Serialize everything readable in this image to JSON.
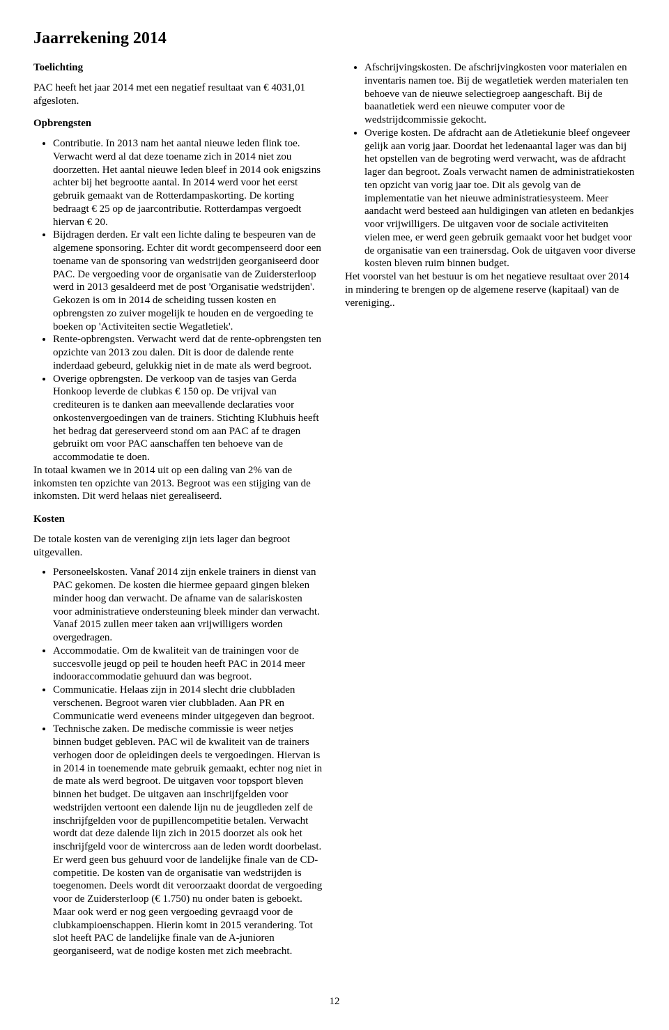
{
  "title": "Jaarrekening 2014",
  "sections": {
    "toelichting": {
      "heading": "Toelichting",
      "intro": "PAC heeft het jaar 2014 met een negatief resultaat van € 4031,01 afgesloten."
    },
    "opbrengsten": {
      "heading": "Opbrengsten",
      "items": [
        "Contributie. In 2013 nam het aantal nieuwe leden flink toe. Verwacht werd al dat deze toename zich in 2014 niet zou doorzetten. Het aantal nieuwe leden bleef in 2014 ook enigszins achter bij het begrootte aantal. In 2014 werd voor het eerst gebruik gemaakt van de Rotterdampaskorting. De korting bedraagt € 25 op de jaarcontributie. Rotterdampas vergoedt hiervan € 20.",
        "Bijdragen derden. Er valt een lichte daling te bespeuren van de algemene sponsoring. Echter dit wordt gecompenseerd door een toename van de sponsoring van wedstrijden georganiseerd door PAC. De vergoeding voor de organisatie van de Zuidersterloop werd in 2013 gesaldeerd met de post 'Organisatie wedstrijden'. Gekozen is om in 2014 de scheiding tussen kosten en opbrengsten zo zuiver mogelijk te houden en de vergoeding te boeken op 'Activiteiten sectie Wegatletiek'.",
        "Rente-opbrengsten. Verwacht werd dat de rente-opbrengsten ten opzichte van 2013 zou dalen. Dit is door de dalende rente inderdaad gebeurd, gelukkig niet in de mate als werd begroot.",
        "Overige opbrengsten. De verkoop van de tasjes van Gerda Honkoop leverde de clubkas € 150 op. De vrijval van crediteuren is te danken aan meevallende declaraties voor onkostenvergoedingen van de trainers. Stichting Klubhuis heeft het bedrag dat gereserveerd stond om aan PAC af te dragen gebruikt om voor PAC aanschaffen ten behoeve van de accommodatie te doen."
      ],
      "closing": "In totaal kwamen we in 2014 uit op een daling van 2% van de inkomsten ten opzichte van 2013. Begroot was een stijging van de inkomsten. Dit werd helaas niet gerealiseerd."
    },
    "kosten": {
      "heading": "Kosten",
      "intro": "De totale kosten van de vereniging zijn iets lager dan begroot uitgevallen.",
      "items": [
        "Personeelskosten. Vanaf 2014 zijn enkele trainers in dienst van PAC gekomen. De kosten die hiermee gepaard gingen bleken minder hoog dan verwacht. De afname van de salariskosten voor administratieve ondersteuning bleek minder dan verwacht. Vanaf 2015 zullen meer taken aan vrijwilligers worden overgedragen.",
        "Accommodatie. Om de kwaliteit van de trainingen voor de succesvolle jeugd op peil te houden heeft PAC in 2014 meer indooraccommodatie gehuurd dan was begroot.",
        "Communicatie. Helaas zijn in 2014 slecht drie clubbladen verschenen. Begroot waren vier clubbladen. Aan PR en Communicatie werd eveneens minder uitgegeven dan begroot.",
        "Technische zaken. De medische commissie is weer netjes binnen budget gebleven. PAC wil de kwaliteit van de trainers verhogen door de opleidingen deels te vergoedingen. Hiervan is in 2014 in toenemende mate gebruik gemaakt, echter nog niet in de mate als werd begroot. De uitgaven voor topsport bleven binnen het budget. De uitgaven aan inschrijfgelden voor wedstrijden vertoont een dalende lijn nu de jeugdleden zelf de inschrijfgelden voor de pupillencompetitie betalen. Verwacht wordt dat deze dalende lijn zich in 2015 doorzet als ook het inschrijfgeld voor de wintercross aan de leden wordt doorbelast. Er werd geen bus gehuurd voor de landelijke finale van de CD-competitie. De kosten van de organisatie van wedstrijden is toegenomen. Deels wordt dit veroorzaakt doordat de vergoeding voor de Zuidersterloop (€ 1.750) nu onder baten is geboekt. Maar ook werd er nog geen vergoeding gevraagd voor de clubkampioenschappen. Hierin komt in 2015 verandering. Tot slot heeft PAC de landelijke finale van de A-junioren georganiseerd, wat de nodige kosten met zich meebracht.",
        "Afschrijvingskosten. De afschrijvingkosten voor materialen en inventaris namen toe. Bij de wegatletiek werden materialen ten behoeve van de nieuwe selectiegroep aangeschaft. Bij de baanatletiek werd een nieuwe computer voor de wedstrijdcommissie gekocht.",
        "Overige kosten. De afdracht aan de Atletiekunie bleef ongeveer gelijk aan vorig jaar. Doordat het ledenaantal lager was dan bij het opstellen van de begroting werd verwacht, was de afdracht lager dan begroot. Zoals verwacht namen de administratiekosten ten opzicht van vorig jaar toe. Dit als gevolg van de implementatie van het nieuwe administratiesysteem. Meer aandacht werd besteed aan huldigingen van atleten en bedankjes voor vrijwilligers. De uitgaven voor de sociale activiteiten vielen mee, er werd geen gebruik gemaakt voor het budget voor de organisatie van een trainersdag. Ook de uitgaven voor diverse kosten bleven ruim binnen budget."
      ],
      "closing": "Het voorstel van het bestuur is om het negatieve resultaat over 2014 in mindering te brengen op de algemene reserve (kapitaal) van de vereniging.."
    }
  },
  "pageNumber": "12"
}
